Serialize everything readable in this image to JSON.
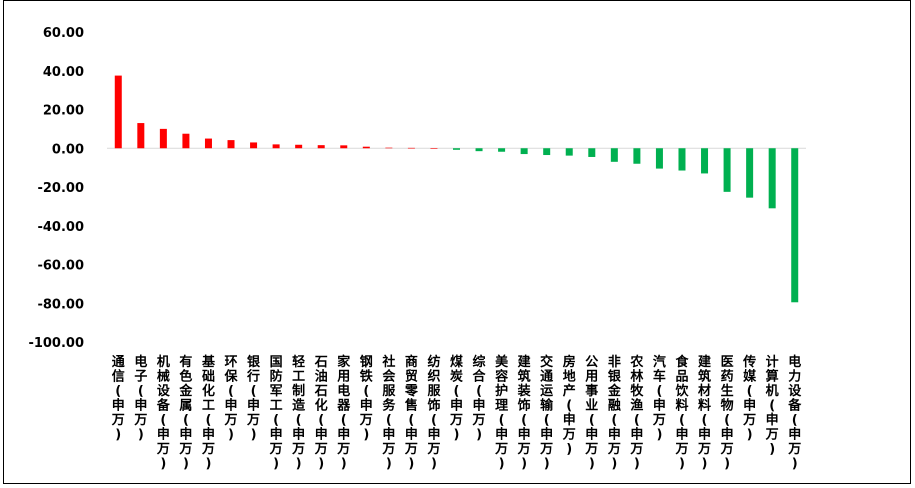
{
  "chart_data": {
    "type": "bar",
    "title": "",
    "xlabel": "",
    "ylabel": "",
    "ylim": [
      -100,
      60
    ],
    "yticks": [
      60,
      40,
      20,
      0,
      -20,
      -40,
      -60,
      -80,
      -100
    ],
    "ytick_labels": [
      "60.00",
      "40.00",
      "20.00",
      "0.00",
      "-20.00",
      "-40.00",
      "-60.00",
      "-80.00",
      "-100.00"
    ],
    "grid": false,
    "legend": "none",
    "positive_color": "#ff0000",
    "negative_color": "#00b050",
    "categories": [
      "通信(申万)",
      "电子(申万)",
      "机械设备(申万)",
      "有色金属(申万)",
      "基础化工(申万)",
      "环保(申万)",
      "银行(申万)",
      "国防军工(申万)",
      "轻工制造(申万)",
      "石油石化(申万)",
      "家用电器(申万)",
      "钢铁(申万)",
      "社会服务(申万)",
      "商贸零售(申万)",
      "纺织服饰(申万)",
      "煤炭(申万)",
      "综合(申万)",
      "美容护理(申万)",
      "建筑装饰(申万)",
      "交通运输(申万)",
      "房地产(申万)",
      "公用事业(申万)",
      "非银金融(申万)",
      "农林牧渔(申万)",
      "汽车(申万)",
      "食品饮料(申万)",
      "建筑材料(申万)",
      "医药生物(申万)",
      "传媒(申万)",
      "计算机(申万)",
      "电力设备(申万)"
    ],
    "values": [
      37.5,
      13,
      10,
      7.5,
      5,
      4.2,
      3,
      2,
      1.8,
      1.6,
      1.5,
      0.8,
      0.3,
      0.2,
      0.1,
      -0.8,
      -1.5,
      -1.8,
      -3,
      -3.5,
      -3.8,
      -4.5,
      -7,
      -8,
      -10.5,
      -11.5,
      -13,
      -22.5,
      -25.5,
      -31,
      -79.5
    ]
  }
}
